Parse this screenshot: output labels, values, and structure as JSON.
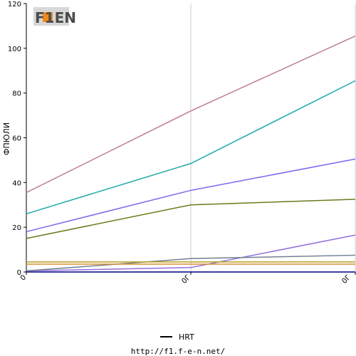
{
  "logo": {
    "text": "F1EN"
  },
  "footer": {
    "url": "http://f1.f-e-n.net/"
  },
  "chart_data": {
    "type": "line",
    "ylabel": "ФПЮЛИ",
    "xlabel": "",
    "categories": [
      "0",
      "0Г",
      "0Г"
    ],
    "ylim": [
      0,
      120
    ],
    "yticks": [
      0,
      20,
      40,
      60,
      80,
      100,
      120
    ],
    "grid": false,
    "legend_position": "bottom",
    "legend": [
      {
        "name": "HRT",
        "color": "#000000"
      }
    ],
    "series": [
      {
        "color": "#bf7f8f",
        "values": [
          35.5,
          72,
          105.5
        ]
      },
      {
        "color": "#20a8a8",
        "values": [
          26,
          48.5,
          85.5
        ]
      },
      {
        "color": "#7b68ee",
        "values": [
          18,
          36.5,
          50.5
        ]
      },
      {
        "color": "#6b7b1b",
        "values": [
          15,
          30,
          32.5
        ]
      },
      {
        "color": "#9370db",
        "values": [
          0.5,
          2,
          16.5
        ]
      },
      {
        "color": "#708090",
        "values": [
          0.5,
          6,
          7.5
        ]
      },
      {
        "color": "#b8a020",
        "values": [
          4.5,
          4.5,
          4.5
        ]
      },
      {
        "color": "#d89030",
        "values": [
          3.5,
          3.5,
          3.5
        ]
      },
      {
        "name": "HRT",
        "color": "#000080",
        "values": [
          0,
          0,
          0
        ]
      }
    ]
  }
}
